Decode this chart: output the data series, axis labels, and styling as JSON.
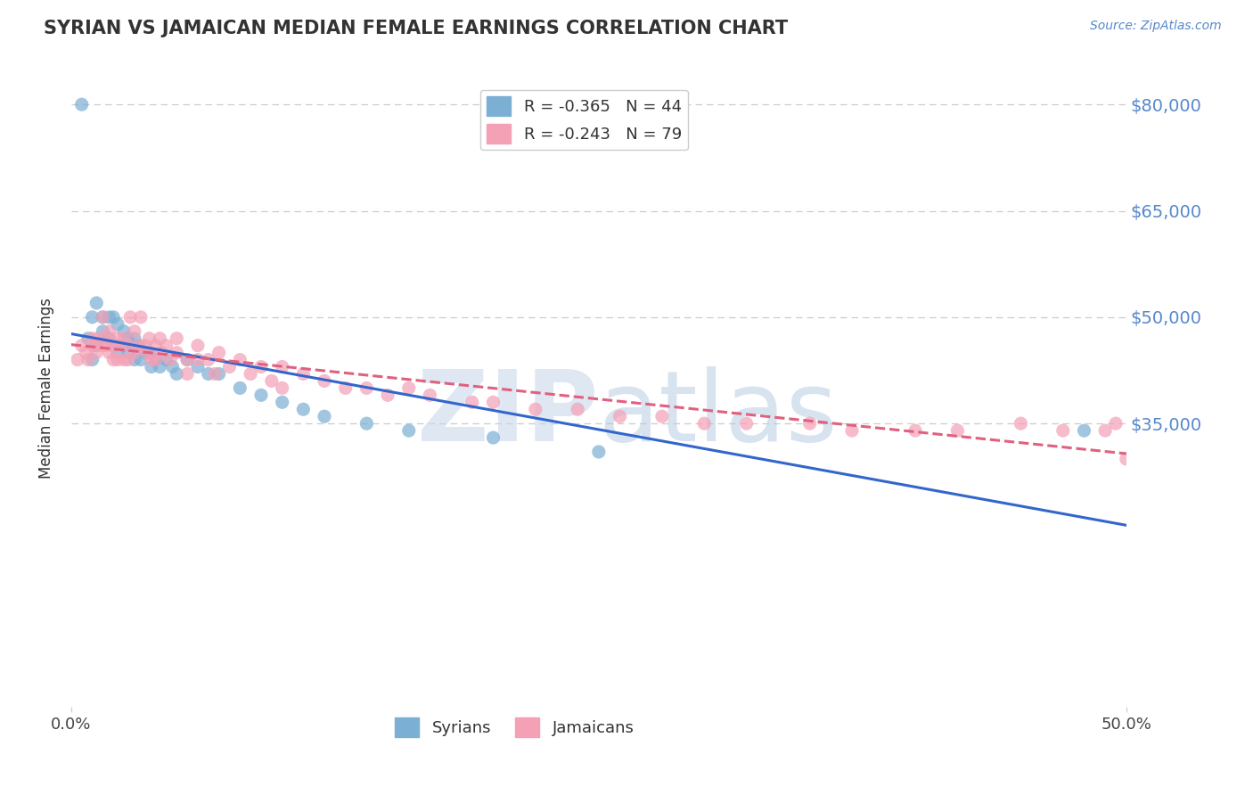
{
  "title": "SYRIAN VS JAMAICAN MEDIAN FEMALE EARNINGS CORRELATION CHART",
  "source_text": "Source: ZipAtlas.com",
  "ylabel": "Median Female Earnings",
  "watermark": "ZIPatlas",
  "xmin": 0.0,
  "xmax": 0.5,
  "ymin": -5000,
  "ymax": 85000,
  "yticks": [
    35000,
    50000,
    65000,
    80000
  ],
  "ytick_labels": [
    "$35,000",
    "$50,000",
    "$65,000",
    "$80,000"
  ],
  "xticks": [
    0.0,
    0.5
  ],
  "xtick_labels": [
    "0.0%",
    "50.0%"
  ],
  "series": [
    {
      "name": "Syrians",
      "color": "#7bafd4",
      "line_color": "#3366cc",
      "line_style": "solid",
      "R": -0.365,
      "N": 44,
      "x": [
        0.005,
        0.008,
        0.01,
        0.01,
        0.012,
        0.012,
        0.015,
        0.015,
        0.018,
        0.018,
        0.02,
        0.02,
        0.022,
        0.022,
        0.025,
        0.025,
        0.027,
        0.027,
        0.03,
        0.03,
        0.032,
        0.033,
        0.035,
        0.037,
        0.038,
        0.04,
        0.042,
        0.045,
        0.048,
        0.05,
        0.055,
        0.06,
        0.065,
        0.07,
        0.08,
        0.09,
        0.1,
        0.11,
        0.12,
        0.14,
        0.16,
        0.2,
        0.25,
        0.48
      ],
      "y": [
        80000,
        47000,
        50000,
        44000,
        52000,
        46000,
        50000,
        48000,
        50000,
        47000,
        50000,
        46000,
        49000,
        45000,
        48000,
        46000,
        47000,
        45000,
        47000,
        44000,
        46000,
        44000,
        45000,
        45000,
        43000,
        44000,
        43000,
        44000,
        43000,
        42000,
        44000,
        43000,
        42000,
        42000,
        40000,
        39000,
        38000,
        37000,
        36000,
        35000,
        34000,
        33000,
        31000,
        34000
      ]
    },
    {
      "name": "Jamaicans",
      "color": "#f4a0b5",
      "line_color": "#e06080",
      "line_style": "dashed",
      "R": -0.243,
      "N": 79,
      "x": [
        0.003,
        0.005,
        0.007,
        0.008,
        0.01,
        0.01,
        0.012,
        0.012,
        0.013,
        0.015,
        0.015,
        0.016,
        0.017,
        0.018,
        0.018,
        0.02,
        0.02,
        0.022,
        0.022,
        0.023,
        0.025,
        0.025,
        0.027,
        0.027,
        0.028,
        0.03,
        0.03,
        0.032,
        0.033,
        0.035,
        0.036,
        0.037,
        0.038,
        0.04,
        0.04,
        0.042,
        0.043,
        0.045,
        0.047,
        0.05,
        0.05,
        0.055,
        0.055,
        0.06,
        0.06,
        0.065,
        0.068,
        0.07,
        0.075,
        0.08,
        0.085,
        0.09,
        0.095,
        0.1,
        0.1,
        0.11,
        0.12,
        0.13,
        0.14,
        0.15,
        0.16,
        0.17,
        0.19,
        0.2,
        0.22,
        0.24,
        0.26,
        0.28,
        0.3,
        0.32,
        0.35,
        0.37,
        0.4,
        0.42,
        0.45,
        0.47,
        0.49,
        0.495,
        0.5
      ],
      "y": [
        44000,
        46000,
        45000,
        44000,
        47000,
        46000,
        46000,
        45000,
        47000,
        50000,
        46000,
        47000,
        46000,
        48000,
        45000,
        46000,
        44000,
        47000,
        44000,
        46000,
        47000,
        44000,
        46000,
        44000,
        50000,
        48000,
        45000,
        46000,
        50000,
        46000,
        45000,
        47000,
        44000,
        46000,
        44000,
        47000,
        45000,
        46000,
        44000,
        47000,
        45000,
        44000,
        42000,
        46000,
        44000,
        44000,
        42000,
        45000,
        43000,
        44000,
        42000,
        43000,
        41000,
        43000,
        40000,
        42000,
        41000,
        40000,
        40000,
        39000,
        40000,
        39000,
        38000,
        38000,
        37000,
        37000,
        36000,
        36000,
        35000,
        35000,
        35000,
        34000,
        34000,
        34000,
        35000,
        34000,
        34000,
        35000,
        30000
      ]
    }
  ],
  "legend_entries": [
    {
      "label": "R = -0.365   N = 44",
      "color": "#7bafd4"
    },
    {
      "label": "R = -0.243   N = 79",
      "color": "#f4a0b5"
    }
  ],
  "title_color": "#333333",
  "axis_color": "#5588cc",
  "grid_color": "#cccccc",
  "background_color": "#ffffff",
  "watermark_color": "#c8d8ea"
}
